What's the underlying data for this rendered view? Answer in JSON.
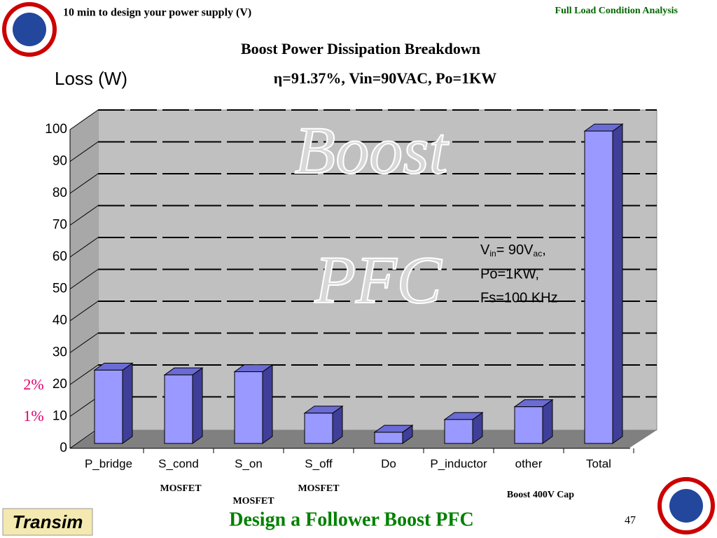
{
  "header": {
    "left": "10 min to design your power supply (V)",
    "right": "Full Load Condition Analysis"
  },
  "chart_data": {
    "type": "bar",
    "title": "Boost Power Dissipation Breakdown",
    "subtitle": "η=91.37%, Vin=90VAC, Po=1KW",
    "y_label": "Loss (W)",
    "categories": [
      "P_bridge",
      "S_cond",
      "S_on",
      "S_off",
      "Do",
      "P_inductor",
      "other",
      "Total"
    ],
    "values": [
      23,
      21.5,
      22.5,
      9.5,
      3.5,
      7.5,
      11.5,
      98
    ],
    "color": "#9999ff",
    "ylim": [
      0,
      100
    ],
    "yticks": [
      0,
      10,
      20,
      30,
      40,
      50,
      60,
      70,
      80,
      90,
      100
    ],
    "grid": true,
    "watermark": [
      "Boost",
      "PFC"
    ],
    "annotation": {
      "v": "V",
      "v_sub": "in",
      "v_rest": "= 90V",
      "ac_sub": "ac",
      "comma": ",",
      "line2": "Po=1KW,",
      "line3": "Fs=100 KHz"
    },
    "side_labels": [
      "2%",
      "1%"
    ],
    "sublabels": [
      "MOSFET",
      "MOSFET",
      "MOSFET",
      "Boost 400V Cap"
    ]
  },
  "footer": {
    "title": "Design a Follower Boost PFC",
    "page": "47",
    "logo": "Transim"
  }
}
